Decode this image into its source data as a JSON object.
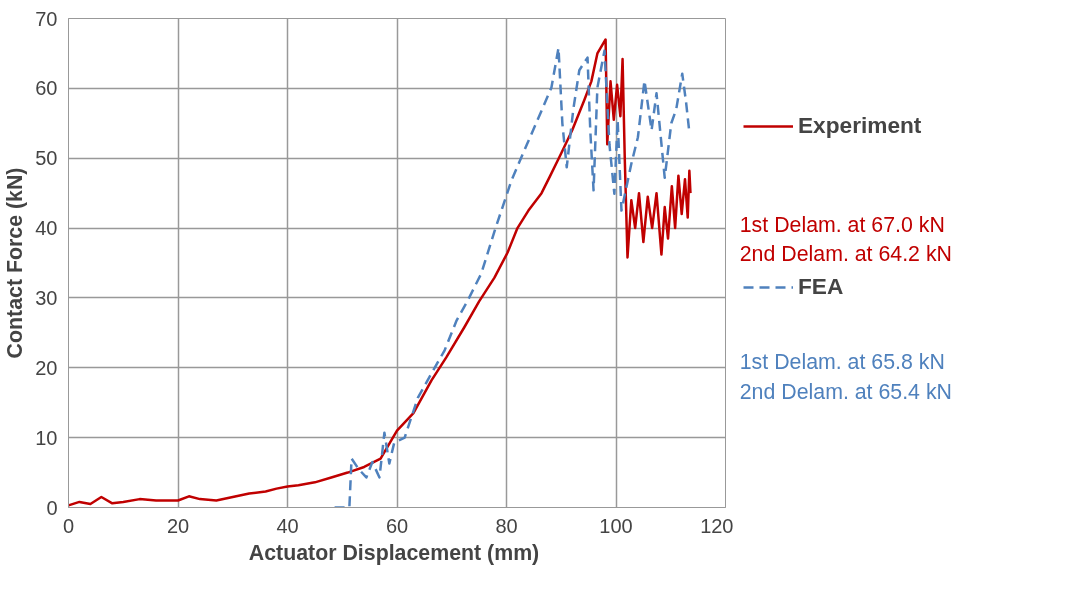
{
  "chart_data": {
    "type": "line",
    "xlabel": "Actuator Displacement  (mm)",
    "ylabel": "Contact Force (kN)",
    "xlim": [
      0,
      120
    ],
    "xticks": [
      0,
      20,
      40,
      60,
      80,
      100,
      120
    ],
    "ylim": [
      0,
      70
    ],
    "yticks": [
      0,
      10,
      20,
      30,
      40,
      50,
      60,
      70
    ],
    "grid": true,
    "legend": "right",
    "series": [
      {
        "name": "Experiment",
        "color": "#c00000",
        "line_style": "solid",
        "x": [
          0,
          2,
          4,
          6,
          8,
          10,
          13,
          16,
          20,
          22,
          24,
          27,
          30,
          33,
          36,
          38,
          40,
          42,
          45,
          48,
          51,
          54,
          57,
          60,
          63,
          66.3,
          69,
          72.3,
          75,
          77.8,
          80.2,
          82,
          84,
          86.4,
          88,
          90,
          92,
          94.2,
          95.5,
          96.6,
          98.1,
          98.4,
          99,
          99.6,
          100.2,
          100.8,
          101.2,
          101.6,
          102.1,
          102.8,
          103.5,
          104.2,
          105,
          105.8,
          106.6,
          107.4,
          108.3,
          108.9,
          109.5,
          110.2,
          110.8,
          111.4,
          112,
          112.6,
          113.1,
          113.4,
          113.6
        ],
        "values": [
          0.3,
          0.8,
          0.5,
          1.5,
          0.6,
          0.8,
          1.2,
          1.0,
          1.0,
          1.6,
          1.2,
          1.0,
          1.5,
          2.0,
          2.3,
          2.7,
          3.0,
          3.2,
          3.6,
          4.3,
          5.0,
          5.8,
          7.0,
          11.0,
          13.5,
          18.2,
          21.5,
          25.8,
          29.5,
          32.9,
          36.5,
          40.0,
          42.5,
          45.0,
          47.5,
          50.7,
          54.0,
          58.3,
          61.0,
          65.0,
          67.0,
          52.0,
          61.0,
          55.5,
          60.5,
          56.0,
          64.2,
          50.0,
          35.8,
          44.0,
          40.0,
          45.0,
          38.0,
          44.5,
          40.0,
          45.0,
          36.2,
          43.0,
          38.5,
          46.0,
          40.0,
          47.5,
          42.0,
          47.0,
          41.5,
          48.2,
          45.0
        ]
      },
      {
        "name": "FEA",
        "color": "#4f81bd",
        "line_style": "dashed",
        "x": [
          48.6,
          51.3,
          51.7,
          53,
          54.4,
          55.5,
          56.8,
          57.7,
          58.6,
          59.5,
          61.4,
          63.8,
          66.3,
          68.7,
          70.9,
          72.9,
          75.4,
          78,
          80.9,
          83.8,
          86.4,
          88.2,
          89.5,
          90.2,
          91,
          92.2,
          93.3,
          94.8,
          95.3,
          95.9,
          96.6,
          97.9,
          98.8,
          99.7,
          100.3,
          101,
          102.8,
          104,
          105.2,
          106.5,
          107.4,
          108.9,
          110.1,
          111,
          112.1,
          112.8,
          113.4
        ],
        "values": [
          0,
          0,
          7.0,
          5.5,
          4.3,
          6.5,
          4.3,
          10.7,
          6.3,
          9.3,
          10.0,
          15.7,
          19.2,
          22.5,
          26.8,
          29.6,
          33.5,
          40.0,
          46.8,
          52.1,
          56.8,
          60.1,
          65.8,
          55.0,
          48.7,
          57.0,
          62.6,
          64.4,
          54.0,
          45.4,
          60.1,
          65.4,
          52.0,
          44.9,
          55.4,
          42.5,
          49.2,
          53.0,
          61.1,
          54.0,
          59.3,
          47.2,
          55.0,
          57.0,
          62.1,
          58.0,
          53.7
        ]
      }
    ],
    "annotations": [
      "1st Delam. at 67.0 kN",
      "2nd Delam. at 64.2 kN",
      "1st Delam. at 65.8 kN",
      "2nd Delam. at 65.4 kN"
    ]
  }
}
